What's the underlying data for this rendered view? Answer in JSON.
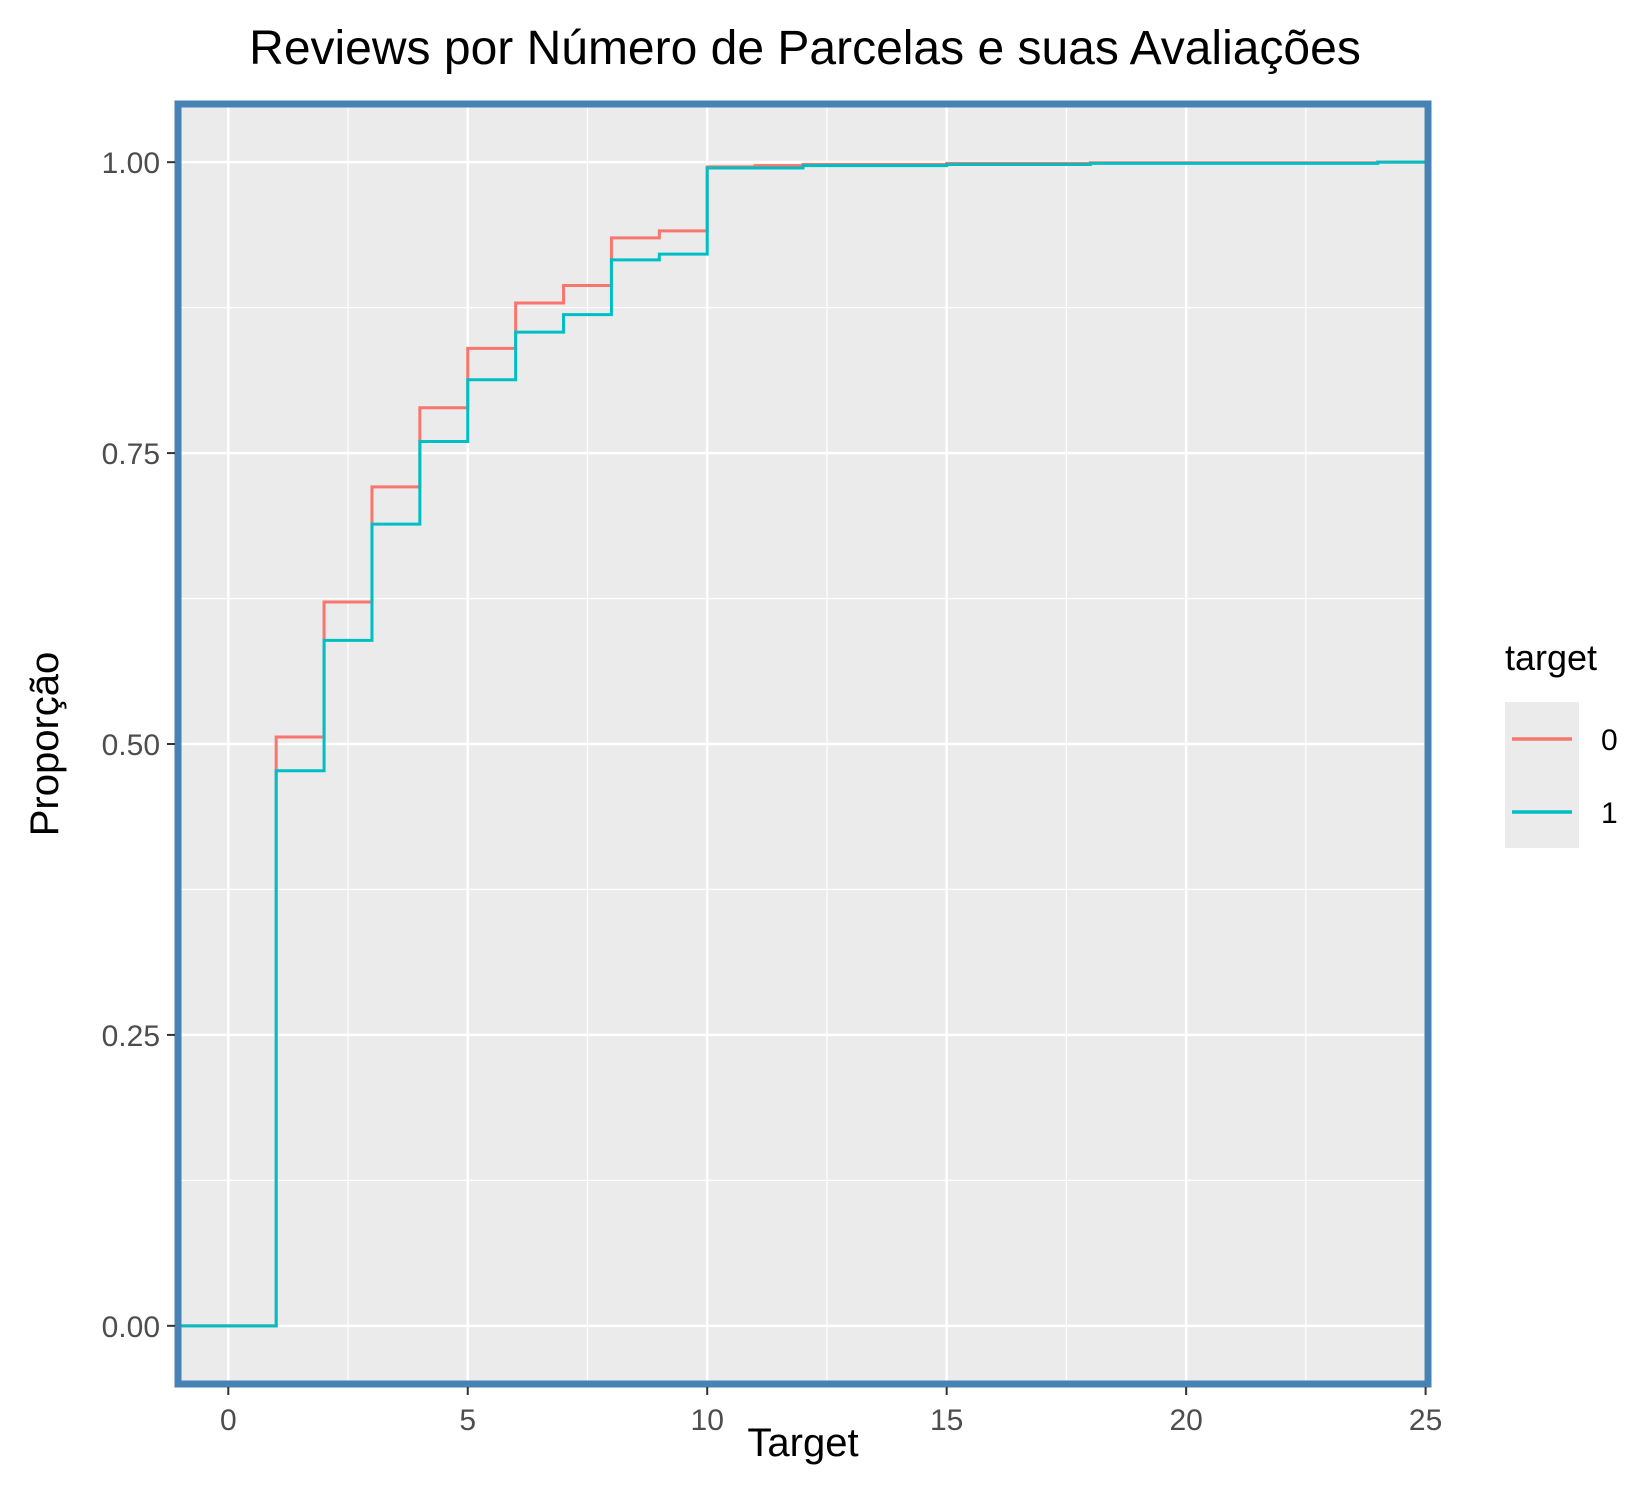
{
  "chart_data": {
    "type": "line",
    "step": true,
    "title": "Reviews por Número de Parcelas e suas Avaliações",
    "xlabel": "Target",
    "ylabel": "Proporção",
    "xlim": [
      -1.05,
      25.05
    ],
    "ylim": [
      -0.05,
      1.05
    ],
    "x_ticks": [
      0,
      5,
      10,
      15,
      20,
      25
    ],
    "x_tick_labels": [
      "0",
      "5",
      "10",
      "15",
      "20",
      "25"
    ],
    "y_ticks": [
      0,
      0.25,
      0.5,
      0.75,
      1
    ],
    "y_tick_labels": [
      "0.00",
      "0.25",
      "0.50",
      "0.75",
      "1.00"
    ],
    "grid": true,
    "legend": {
      "title": "target",
      "position": "right"
    },
    "series": [
      {
        "name": "0",
        "color": "#F8766D",
        "x": [
          -1.05,
          1,
          2,
          3,
          4,
          5,
          6,
          7,
          8,
          9,
          10,
          11,
          12,
          15,
          18,
          24,
          25.05
        ],
        "y": [
          0,
          0.506,
          0.622,
          0.721,
          0.789,
          0.84,
          0.879,
          0.894,
          0.935,
          0.941,
          0.996,
          0.997,
          0.998,
          0.999,
          0.9995,
          1.0,
          1.0
        ]
      },
      {
        "name": "1",
        "color": "#00BFC4",
        "x": [
          -1.05,
          1,
          2,
          3,
          4,
          5,
          6,
          7,
          8,
          9,
          10,
          12,
          15,
          18,
          24,
          25.05
        ],
        "y": [
          0,
          0.477,
          0.589,
          0.689,
          0.76,
          0.813,
          0.854,
          0.869,
          0.916,
          0.921,
          0.995,
          0.997,
          0.998,
          0.999,
          1.0,
          1.0
        ]
      }
    ]
  }
}
